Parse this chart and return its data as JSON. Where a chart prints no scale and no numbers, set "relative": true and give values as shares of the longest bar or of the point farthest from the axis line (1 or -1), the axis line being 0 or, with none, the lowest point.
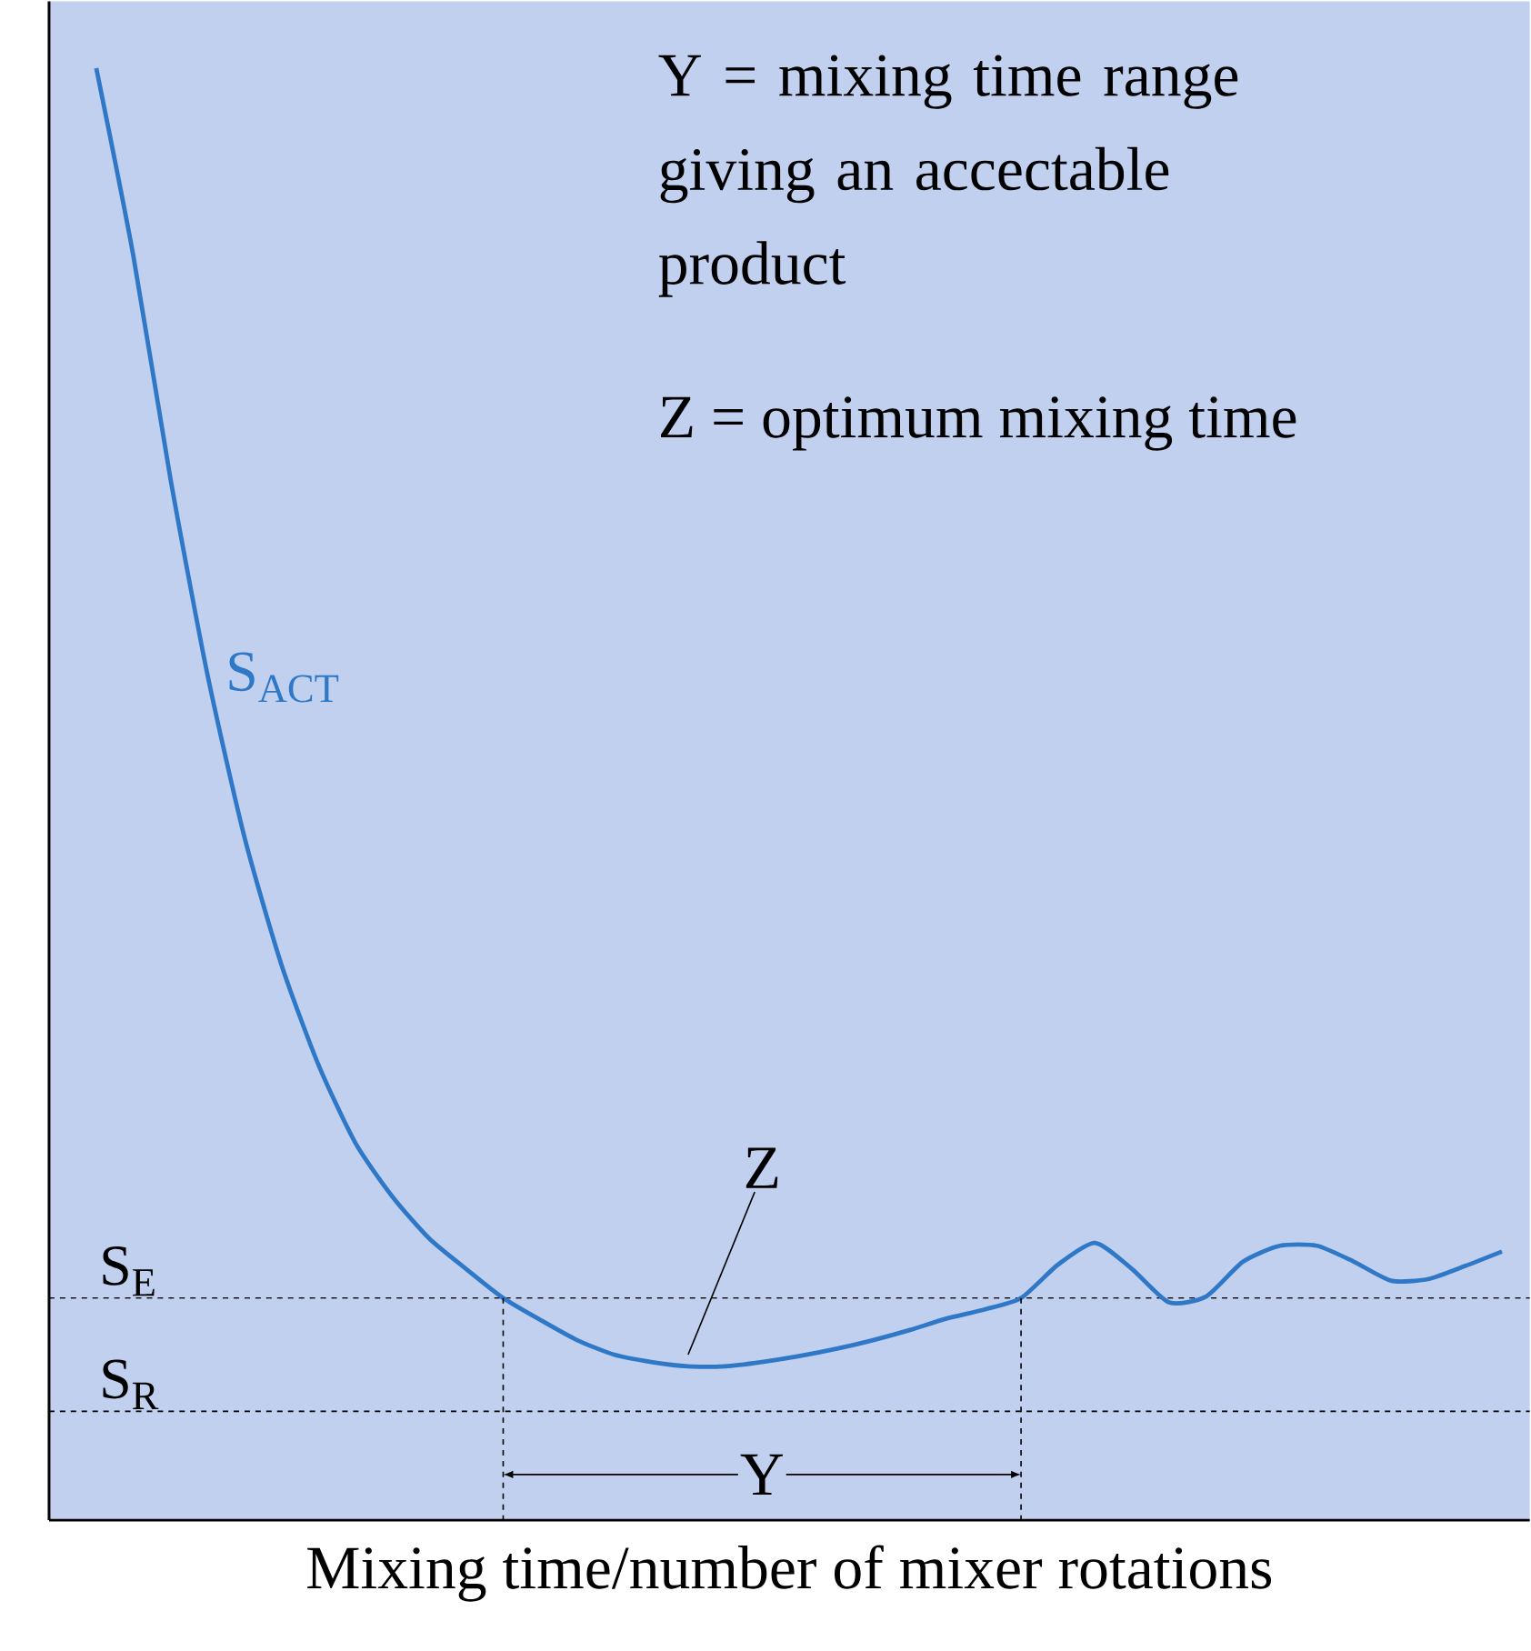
{
  "chart_data": {
    "type": "line",
    "relative": true,
    "categories": [
      null,
      null,
      null,
      null,
      null,
      null,
      null,
      null,
      null,
      null,
      null,
      null,
      null,
      null,
      null,
      null,
      null,
      null,
      null,
      null,
      null,
      null,
      null,
      null,
      null,
      null,
      null,
      null,
      null,
      null,
      null,
      null,
      null,
      null,
      null,
      null,
      null,
      null,
      null
    ],
    "series": [
      {
        "name": "S$_{ACT}$",
        "color": "#2f78c8",
        "values": [
          1.0,
          0.871,
          0.718,
          0.583,
          0.471,
          0.383,
          0.314,
          0.26,
          0.223,
          0.194,
          0.173,
          0.153,
          0.138,
          0.124,
          0.114,
          0.109,
          0.106,
          0.106,
          0.109,
          0.113,
          0.118,
          0.124,
          0.131,
          0.139,
          0.145,
          0.153,
          0.176,
          0.191,
          0.173,
          0.15,
          0.154,
          0.178,
          0.189,
          0.189,
          0.178,
          0.165,
          0.166,
          0.175,
          0.185
        ]
      }
    ],
    "xlabel": "Mixing time/number of mixer rotations",
    "annotations": [
      "Y = mixing time range giving an accectable product",
      "Z = optimum mixing time",
      "Z",
      "Y"
    ],
    "ref_lines": [
      {
        "axis": "y",
        "value": 0.153,
        "label": "S$_{E}$",
        "color": "#000000",
        "line_style": "dashed"
      },
      {
        "axis": "y",
        "value": 0.075,
        "label": "S$_{R}$",
        "color": "#000000",
        "line_style": "dashed"
      }
    ]
  }
}
